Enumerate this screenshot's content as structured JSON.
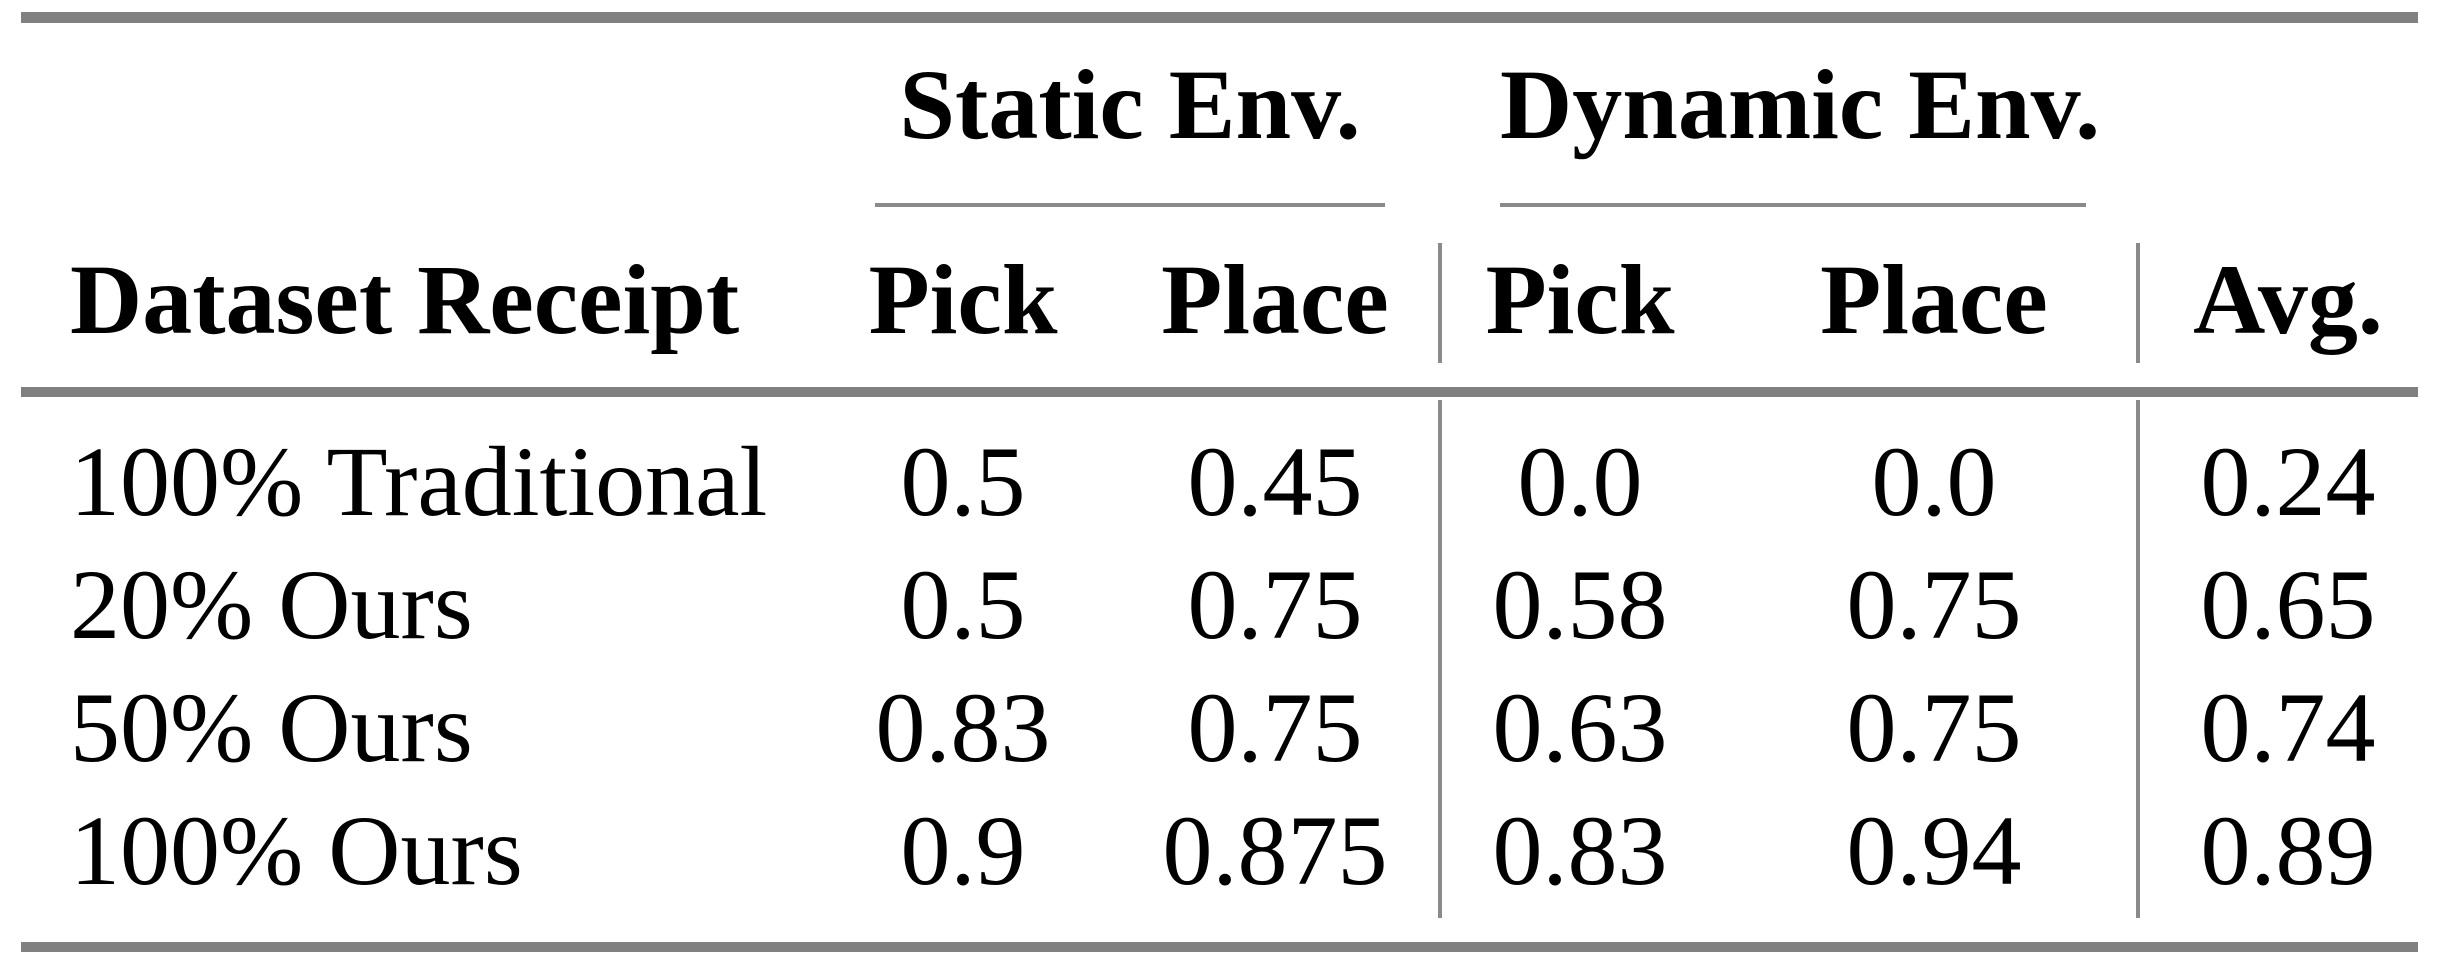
{
  "table": {
    "group_header": {
      "static": "Static Env.",
      "dynamic": "Dynamic Env."
    },
    "columns": {
      "dataset": "Dataset Receipt",
      "static_pick": "Pick",
      "static_place": "Place",
      "dynamic_pick": "Pick",
      "dynamic_place": "Place",
      "avg": "Avg."
    },
    "rows": [
      {
        "dataset": "100% Traditional",
        "static_pick": "0.5",
        "static_place": "0.45",
        "dynamic_pick": "0.0",
        "dynamic_place": "0.0",
        "avg": "0.24"
      },
      {
        "dataset": "20% Ours",
        "static_pick": "0.5",
        "static_place": "0.75",
        "dynamic_pick": "0.58",
        "dynamic_place": "0.75",
        "avg": "0.65"
      },
      {
        "dataset": "50% Ours",
        "static_pick": "0.83",
        "static_place": "0.75",
        "dynamic_pick": "0.63",
        "dynamic_place": "0.75",
        "avg": "0.74"
      },
      {
        "dataset": "100% Ours",
        "static_pick": "0.9",
        "static_place": "0.875",
        "dynamic_pick": "0.83",
        "dynamic_place": "0.94",
        "avg": "0.89"
      }
    ]
  },
  "colors": {
    "rule_thick": "#808080",
    "rule_thin": "#8a8a8a",
    "text": "#000000",
    "background": "#ffffff"
  }
}
